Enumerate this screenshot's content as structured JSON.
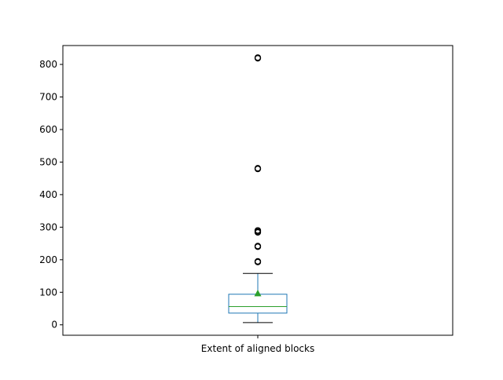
{
  "chart_data": {
    "type": "box",
    "categories": [
      "Extent of aligned blocks"
    ],
    "ylim": [
      -32,
      858
    ],
    "yticks": [
      0,
      100,
      200,
      300,
      400,
      500,
      600,
      700,
      800
    ],
    "ytick_labels": [
      "0",
      "100",
      "200",
      "300",
      "400",
      "500",
      "600",
      "700",
      "800"
    ],
    "grid": false,
    "series": [
      {
        "whisker_low": 7,
        "q1": 36,
        "median": 56,
        "q3": 94,
        "whisker_high": 158,
        "mean": 96,
        "outliers": [
          193,
          195,
          240,
          242,
          284,
          287,
          290,
          479,
          481,
          819,
          821
        ]
      }
    ]
  },
  "colors": {
    "box": "#1f77b4",
    "median": "#2ca02c",
    "mean_marker": "#2ca02c",
    "whisker": "#000000",
    "outlier": "#000000"
  }
}
